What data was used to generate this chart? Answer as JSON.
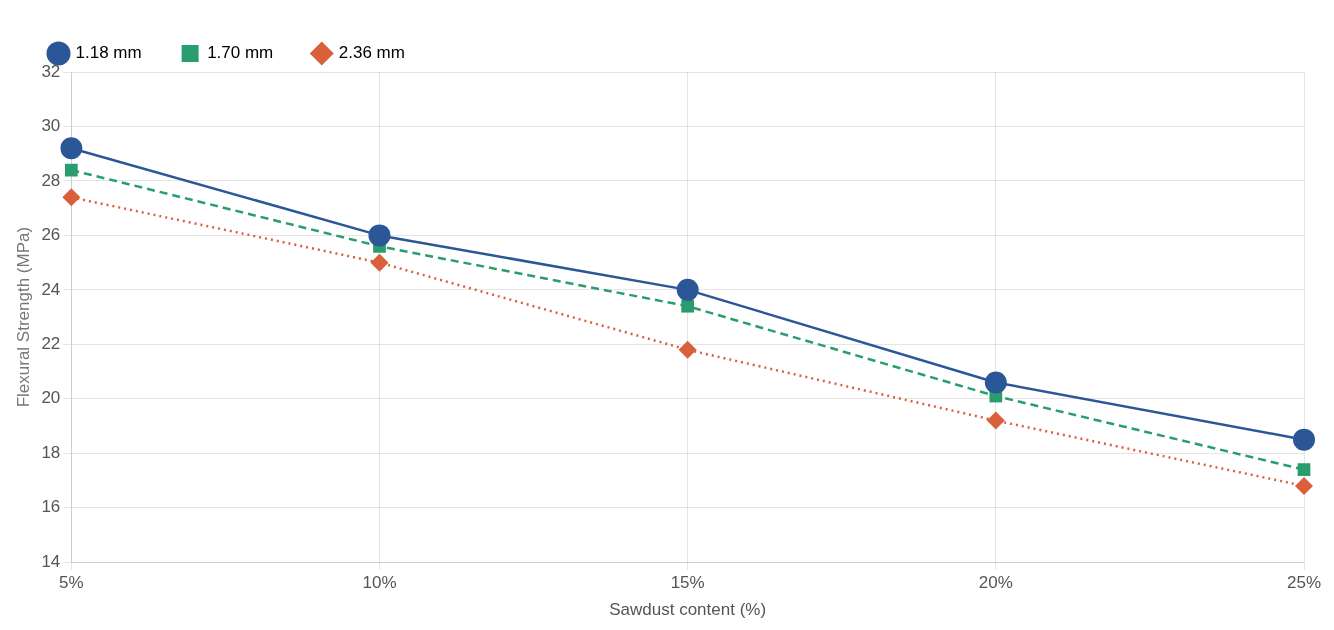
{
  "chart_data": {
    "type": "line",
    "xlabel": "Sawdust content (%)",
    "ylabel": "Flexural Strength (MPa)",
    "categories": [
      "5%",
      "10%",
      "15%",
      "20%",
      "25%"
    ],
    "series": [
      {
        "name": "1.18 mm",
        "color": "#2b5797",
        "values": [
          29.2,
          26.0,
          24.0,
          20.6,
          18.5
        ],
        "marker": "circle",
        "line_style": "solid"
      },
      {
        "name": "1.70 mm",
        "color": "#2a9d6f",
        "values": [
          28.4,
          25.6,
          23.4,
          20.1,
          17.4
        ],
        "marker": "square",
        "line_style": "dashed"
      },
      {
        "name": "2.36 mm",
        "color": "#d9603b",
        "values": [
          27.4,
          25.0,
          21.8,
          19.2,
          16.8
        ],
        "marker": "diamond",
        "line_style": "dotted"
      }
    ],
    "ylim": [
      14,
      32
    ],
    "yticks": [
      14,
      16,
      18,
      20,
      22,
      24,
      26,
      28,
      30,
      32
    ],
    "grid": true,
    "legend": "top left"
  }
}
